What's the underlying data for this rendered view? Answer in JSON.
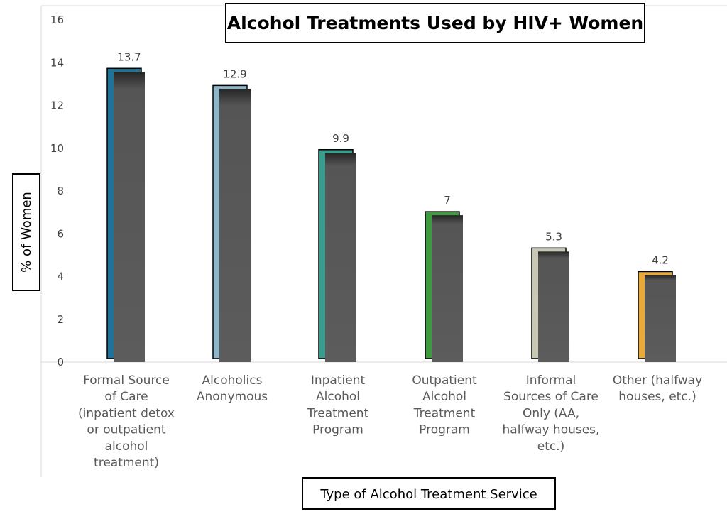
{
  "chart_data": {
    "type": "bar",
    "title": "Alcohol Treatments Used by HIV+ Women",
    "xlabel": "Type of Alcohol Treatment Service",
    "ylabel": "% of Women",
    "ylim": [
      0,
      16
    ],
    "yticks": [
      "0",
      "2",
      "4",
      "6",
      "8",
      "10",
      "12",
      "14",
      "16"
    ],
    "grid": false,
    "categories": [
      [
        "Formal Source",
        "of Care",
        "(inpatient detox",
        "or outpatient",
        "alcohol",
        "treatment)"
      ],
      [
        "Alcoholics",
        "Anonymous"
      ],
      [
        "Inpatient",
        "Alcohol",
        "Treatment",
        "Program"
      ],
      [
        "Outpatient",
        "Alcohol",
        "Treatment",
        "Program"
      ],
      [
        "Informal",
        "Sources of Care",
        "Only (AA,",
        "halfway houses,",
        "etc.)"
      ],
      [
        "Other (halfway",
        "houses, etc.)"
      ]
    ],
    "values": [
      13.7,
      12.9,
      9.9,
      7,
      5.3,
      4.2
    ],
    "data_labels": [
      "13.7",
      "12.9",
      "9.9",
      "7",
      "5.3",
      "4.2"
    ],
    "colors": [
      "#1f7396",
      "#8fb5c9",
      "#3a9c8c",
      "#3f9a3f",
      "#c9c8b4",
      "#e8a93a"
    ]
  }
}
